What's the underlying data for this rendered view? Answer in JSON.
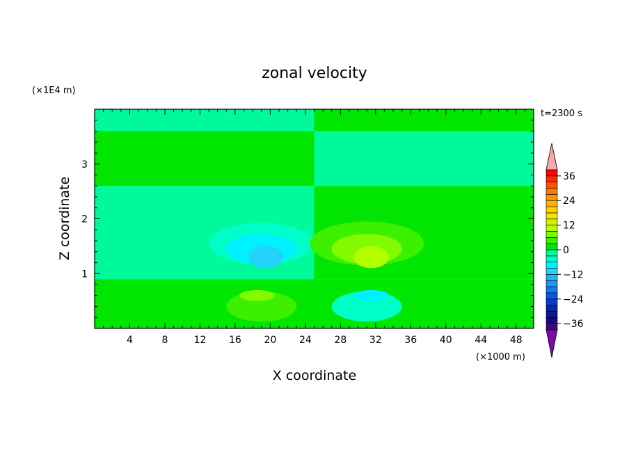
{
  "chart_data": {
    "type": "heatmap",
    "title": "zonal velocity",
    "xlabel": "X coordinate",
    "ylabel": "Z coordinate",
    "x_unit": "(×1000 m)",
    "y_unit": "(×1E4 m)",
    "time_label": "t=2300 s",
    "xlim": [
      0,
      50
    ],
    "ylim": [
      0,
      4
    ],
    "x_ticks": [
      4,
      8,
      12,
      16,
      20,
      24,
      28,
      32,
      36,
      40,
      44,
      48
    ],
    "y_ticks": [
      1,
      2,
      3
    ],
    "colorbar": {
      "levels": [
        -40,
        -36,
        -33,
        -30,
        -27,
        -24,
        -21,
        -18,
        -15,
        -12,
        -9,
        -6,
        -3,
        0,
        3,
        6,
        9,
        12,
        15,
        18,
        21,
        24,
        27,
        30,
        33,
        36,
        39
      ],
      "labels": [
        36,
        24,
        12,
        0,
        -12,
        -24,
        -36
      ],
      "colors": [
        "#3c0a78",
        "#1a0a80",
        "#0a1a8c",
        "#0a26a8",
        "#0a3ad0",
        "#0a56e6",
        "#1478f0",
        "#1e96f5",
        "#23b4f8",
        "#23d2fa",
        "#00f0ff",
        "#00ffc8",
        "#00fa9a",
        "#00e600",
        "#3cf000",
        "#82fa00",
        "#b4ff00",
        "#d2f000",
        "#f0e600",
        "#ffd200",
        "#ffb400",
        "#ff9600",
        "#ff7800",
        "#ff5000",
        "#ff2800",
        "#ff0000"
      ],
      "over_color": "#f4a8a8",
      "under_color": "#7c0aa8"
    },
    "field": {
      "background_bands": [
        {
          "z_from": 0.0,
          "z_to": 0.9,
          "left_value": 1.5,
          "right_value": 1.5
        },
        {
          "z_from": 0.9,
          "z_to": 2.6,
          "left_value": -1.5,
          "right_value": 1.5
        },
        {
          "z_from": 2.6,
          "z_to": 3.6,
          "left_value": 1.5,
          "right_value": -1.5
        },
        {
          "z_from": 3.6,
          "z_to": 4.0,
          "left_value": -1.5,
          "right_value": 1.5
        }
      ],
      "features": [
        {
          "name": "left-upper-negative-outer",
          "value": -4.5,
          "center": [
            19,
            1.55
          ],
          "extent": [
            12,
            0.75
          ]
        },
        {
          "name": "left-upper-negative-mid",
          "value": -7.5,
          "center": [
            19,
            1.45
          ],
          "extent": [
            8,
            0.55
          ]
        },
        {
          "name": "left-upper-negative-core",
          "value": -10.5,
          "center": [
            19.5,
            1.3
          ],
          "extent": [
            4,
            0.4
          ]
        },
        {
          "name": "left-lower-positive-outer",
          "value": 4.5,
          "center": [
            19,
            0.4
          ],
          "extent": [
            8,
            0.55
          ]
        },
        {
          "name": "left-lower-positive-core",
          "value": 7.5,
          "center": [
            18.5,
            0.6
          ],
          "extent": [
            4,
            0.2
          ]
        },
        {
          "name": "right-upper-positive-outer",
          "value": 4.5,
          "center": [
            31,
            1.55
          ],
          "extent": [
            13,
            0.8
          ]
        },
        {
          "name": "right-upper-positive-mid",
          "value": 7.5,
          "center": [
            31,
            1.45
          ],
          "extent": [
            8,
            0.55
          ]
        },
        {
          "name": "right-upper-positive-core",
          "value": 10.5,
          "center": [
            31.5,
            1.3
          ],
          "extent": [
            4,
            0.4
          ]
        },
        {
          "name": "right-lower-negative-outer",
          "value": -4.5,
          "center": [
            31,
            0.4
          ],
          "extent": [
            8,
            0.55
          ]
        },
        {
          "name": "right-lower-negative-core",
          "value": -7.5,
          "center": [
            31.5,
            0.6
          ],
          "extent": [
            4,
            0.2
          ]
        }
      ]
    }
  }
}
